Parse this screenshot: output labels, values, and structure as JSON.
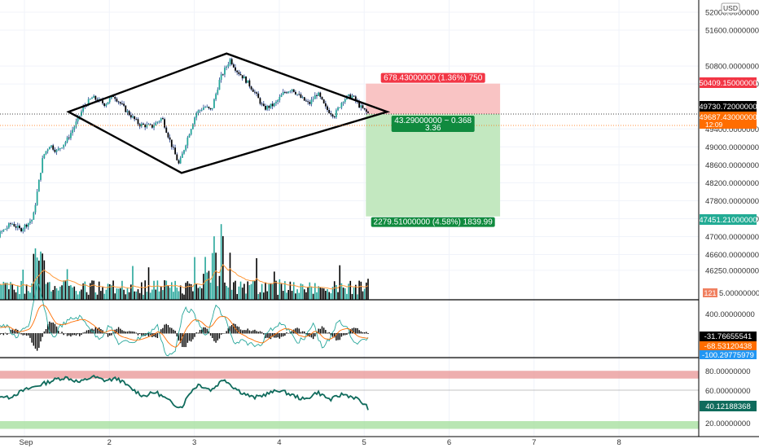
{
  "chart_data": [
    {
      "type": "candlestick",
      "pane": "price",
      "currency_badge": "USD",
      "x_ticks": [
        "Sep",
        "2",
        "3",
        "4",
        "5",
        "6",
        "7",
        "8"
      ],
      "y_ticks": [
        "52000.00000000",
        "51600.00000000",
        "50800.00000000",
        "50400.00000000",
        "49400.00000000",
        "49000.00000000",
        "48600.00000000",
        "48200.00000000",
        "47800.00000000",
        "47400.00000000",
        "47000.00000000",
        "46600.00000000",
        "46250.00000000"
      ],
      "ylim": [
        45950,
        52150
      ],
      "close_path": [
        [
          -0.6,
          46820
        ],
        [
          -0.45,
          46700
        ],
        [
          -0.3,
          47050
        ],
        [
          -0.15,
          47300
        ],
        [
          -0.05,
          47150
        ],
        [
          0.1,
          47400
        ],
        [
          0.22,
          48800
        ],
        [
          0.3,
          49050
        ],
        [
          0.38,
          48900
        ],
        [
          0.5,
          49150
        ],
        [
          0.6,
          49500
        ],
        [
          0.7,
          49900
        ],
        [
          0.8,
          50100
        ],
        [
          0.95,
          49950
        ],
        [
          1.05,
          50150
        ],
        [
          1.2,
          49800
        ],
        [
          1.35,
          49500
        ],
        [
          1.5,
          49450
        ],
        [
          1.62,
          49650
        ],
        [
          1.72,
          49100
        ],
        [
          1.82,
          48600
        ],
        [
          1.92,
          49200
        ],
        [
          2.02,
          49750
        ],
        [
          2.12,
          49900
        ],
        [
          2.2,
          49800
        ],
        [
          2.3,
          50500
        ],
        [
          2.42,
          50950
        ],
        [
          2.5,
          50700
        ],
        [
          2.6,
          50500
        ],
        [
          2.7,
          50250
        ],
        [
          2.82,
          49850
        ],
        [
          2.95,
          49950
        ],
        [
          3.05,
          50200
        ],
        [
          3.15,
          50300
        ],
        [
          3.25,
          50100
        ],
        [
          3.35,
          49950
        ],
        [
          3.45,
          50200
        ],
        [
          3.55,
          49850
        ],
        [
          3.65,
          49700
        ],
        [
          3.75,
          50050
        ],
        [
          3.85,
          50150
        ],
        [
          3.95,
          49900
        ],
        [
          4.02,
          49780
        ],
        [
          4.06,
          49730
        ]
      ],
      "annotations": {
        "last_price": "49730.72000000",
        "countdown": "12:09",
        "bid_price": "49687.43000000",
        "stop_price": "50409.15000000",
        "target_price": "47451.21000000",
        "stop_label": "678.43000000 (1.36%) 750",
        "entry_label_line1": "43.29000000 ~ 0.368",
        "entry_label_line2": "3.36",
        "target_label": "2279.51000000 (4.58%) 1839.99"
      },
      "pattern": {
        "name": "diamond",
        "vertices": [
          [
            0.52,
            49780
          ],
          [
            2.38,
            51080
          ],
          [
            4.27,
            49780
          ],
          [
            1.85,
            48420
          ]
        ]
      },
      "position": {
        "type": "short",
        "entry": 49730.72,
        "stop": 50409.15,
        "target": 47451.21,
        "x_range": [
          4.02,
          5.6
        ]
      },
      "colors": {
        "up": "#26a69a",
        "down": "#000000",
        "wick": "#1c3a8a",
        "stop_fill": "#f9c4c4",
        "target_fill": "#c3e8c0",
        "stop_tag": "#f23645",
        "target_tag": "#22ab94",
        "bid_tag": "#ff6d00"
      }
    },
    {
      "type": "bar",
      "pane": "volume",
      "badge": "121",
      "partial_tick": "5.00000000",
      "colors": {
        "up": "#26a69a",
        "down": "#000000",
        "ma": "#ff9a3c"
      }
    },
    {
      "type": "line",
      "pane": "macd",
      "y_ticks": [
        "400.00000000"
      ],
      "values_shown": [
        "-31.76655541",
        "-68.53120438",
        "-100.29775979"
      ],
      "colors": {
        "histogram": "#000000",
        "macd": "#26a69a",
        "signal": "#ff6d00",
        "hist_tag": "#000000",
        "signal_tag": "#ff6d00",
        "macd_tag": "#2196f3"
      }
    },
    {
      "type": "line",
      "pane": "rsi",
      "y_ticks": [
        "80.00000000",
        "60.00000000",
        "20.00000000"
      ],
      "ylim": [
        12,
        92
      ],
      "bands": {
        "overbought": [
          72,
          80
        ],
        "oversold": [
          20,
          28
        ]
      },
      "last_value": "40.12188368",
      "path": [
        [
          -0.6,
          56
        ],
        [
          -0.4,
          58
        ],
        [
          -0.2,
          52
        ],
        [
          0.0,
          60
        ],
        [
          0.2,
          66
        ],
        [
          0.4,
          72
        ],
        [
          0.5,
          73
        ],
        [
          0.65,
          68
        ],
        [
          0.8,
          74
        ],
        [
          0.95,
          70
        ],
        [
          1.1,
          72
        ],
        [
          1.25,
          62
        ],
        [
          1.4,
          54
        ],
        [
          1.55,
          58
        ],
        [
          1.65,
          52
        ],
        [
          1.75,
          46
        ],
        [
          1.85,
          42
        ],
        [
          1.95,
          58
        ],
        [
          2.05,
          66
        ],
        [
          2.2,
          60
        ],
        [
          2.35,
          72
        ],
        [
          2.45,
          64
        ],
        [
          2.55,
          58
        ],
        [
          2.7,
          52
        ],
        [
          2.85,
          56
        ],
        [
          3.0,
          60
        ],
        [
          3.15,
          55
        ],
        [
          3.3,
          50
        ],
        [
          3.45,
          58
        ],
        [
          3.6,
          50
        ],
        [
          3.75,
          56
        ],
        [
          3.9,
          52
        ],
        [
          4.02,
          44
        ],
        [
          4.06,
          40
        ]
      ],
      "colors": {
        "line": "#0f6b5c",
        "overbought": "#e89494",
        "oversold": "#a8e0a0",
        "tag": "#0f6b5c"
      }
    }
  ]
}
